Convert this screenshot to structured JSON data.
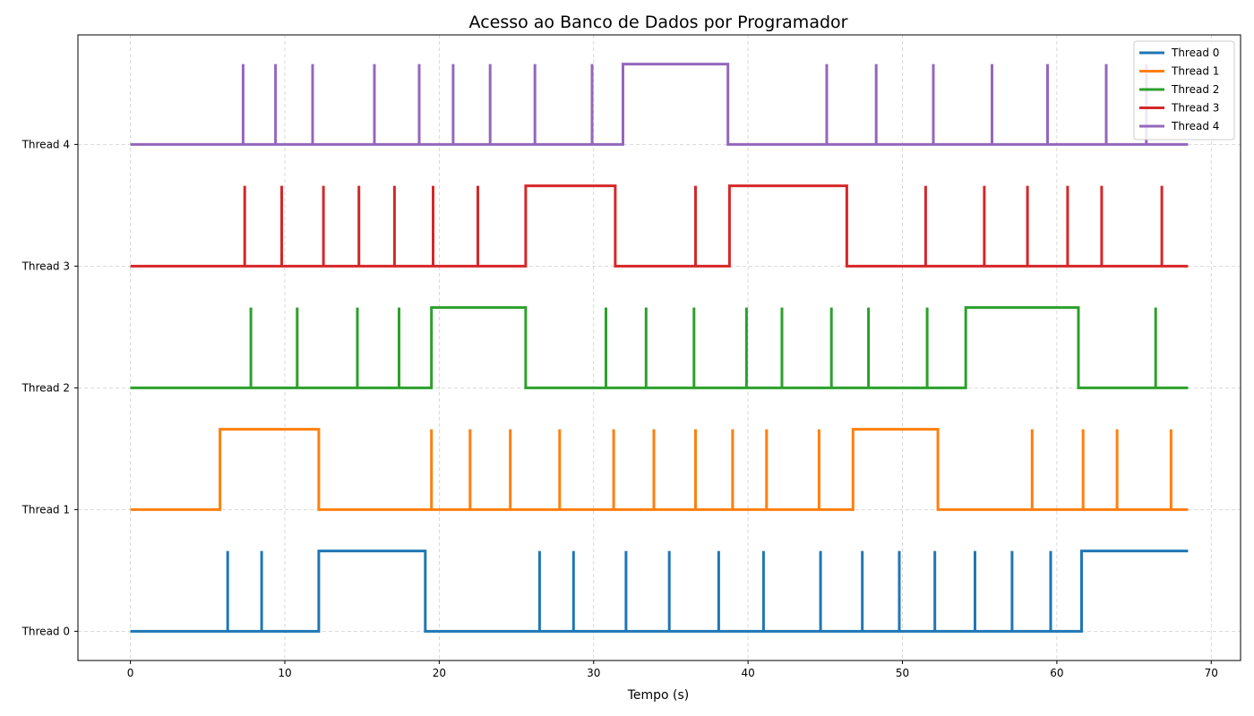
{
  "chart_data": {
    "type": "line",
    "title": "Acesso ao Banco de Dados por Programador",
    "xlabel": "Tempo (s)",
    "ylabel": "",
    "xlim": [
      -3.4,
      71.9
    ],
    "ylim": [
      -0.24,
      4.9
    ],
    "xticks": [
      0,
      10,
      20,
      30,
      40,
      50,
      60,
      70
    ],
    "x_end": 68.5,
    "pulse_height": 0.66,
    "grid": true,
    "legend_position": "top-right",
    "yticks": [
      {
        "value": 0,
        "label": "Thread 0"
      },
      {
        "value": 1,
        "label": "Thread 1"
      },
      {
        "value": 2,
        "label": "Thread 2"
      },
      {
        "value": 3,
        "label": "Thread 3"
      },
      {
        "value": 4,
        "label": "Thread 4"
      }
    ],
    "series": [
      {
        "name": "Thread 0",
        "color": "#1f77b4",
        "baseline": 0,
        "spikes": [
          6.3,
          8.5,
          26.5,
          28.7,
          32.1,
          34.9,
          38.1,
          41.0,
          44.7,
          47.4,
          49.8,
          52.1,
          54.7,
          57.1,
          59.6
        ],
        "blocks": [
          [
            12.2,
            19.1
          ],
          [
            61.6,
            68.5
          ]
        ]
      },
      {
        "name": "Thread 1",
        "color": "#ff7f0e",
        "baseline": 1,
        "spikes": [
          19.5,
          22.0,
          24.6,
          27.8,
          31.3,
          33.9,
          36.6,
          39.0,
          41.2,
          44.6,
          58.4,
          61.7,
          63.9,
          67.4
        ],
        "blocks": [
          [
            5.8,
            12.2
          ],
          [
            46.8,
            52.3
          ]
        ]
      },
      {
        "name": "Thread 2",
        "color": "#2ca02c",
        "baseline": 2,
        "spikes": [
          7.8,
          10.8,
          14.7,
          17.4,
          30.8,
          33.4,
          36.5,
          39.9,
          42.2,
          45.4,
          47.8,
          51.6,
          66.4
        ],
        "blocks": [
          [
            19.5,
            25.6
          ],
          [
            54.1,
            61.4
          ]
        ]
      },
      {
        "name": "Thread 3",
        "color": "#d62728",
        "baseline": 3,
        "spikes": [
          7.4,
          9.8,
          12.5,
          14.8,
          17.1,
          19.6,
          22.5,
          36.6,
          51.5,
          55.3,
          58.1,
          60.7,
          62.9,
          66.8
        ],
        "blocks": [
          [
            25.6,
            31.4
          ],
          [
            38.8,
            46.4
          ]
        ]
      },
      {
        "name": "Thread 4",
        "color": "#9467bd",
        "baseline": 4,
        "spikes": [
          7.3,
          9.4,
          11.8,
          15.8,
          18.7,
          20.9,
          23.3,
          26.2,
          29.9,
          45.1,
          48.3,
          52.0,
          55.8,
          59.4,
          63.2,
          65.8
        ],
        "blocks": [
          [
            31.9,
            38.7
          ]
        ]
      }
    ]
  }
}
